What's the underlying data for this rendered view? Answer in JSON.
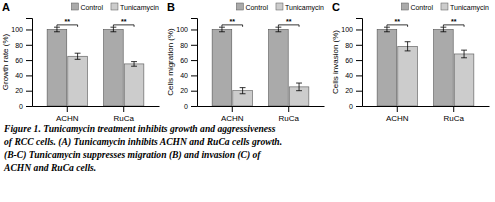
{
  "chart_data": [
    {
      "type": "bar",
      "title": "A",
      "y_label": "Growth rate (%)",
      "categories": [
        "ACHN",
        "RuCa"
      ],
      "series": [
        {
          "name": "Control",
          "color": "#aaaaaa",
          "values": [
            100,
            100
          ],
          "errors": [
            3,
            3
          ]
        },
        {
          "name": "Tunicamycin",
          "color": "#cccccc",
          "values": [
            65,
            55
          ],
          "errors": [
            4,
            3
          ]
        }
      ],
      "annotations": [
        {
          "text": "**",
          "category": "ACHN",
          "y": 106
        },
        {
          "text": "**",
          "category": "RuCa",
          "y": 106
        }
      ],
      "ylim": [
        0,
        115
      ],
      "yticks": [
        0,
        20,
        40,
        60,
        80,
        100
      ],
      "legend": "top"
    },
    {
      "type": "bar",
      "title": "B",
      "y_label": "Cells migration (%)",
      "categories": [
        "ACHN",
        "RuCa"
      ],
      "series": [
        {
          "name": "Control",
          "color": "#aaaaaa",
          "values": [
            100,
            100
          ],
          "errors": [
            3,
            3
          ]
        },
        {
          "name": "Tunicamycin",
          "color": "#cccccc",
          "values": [
            20,
            25
          ],
          "errors": [
            4,
            5
          ]
        }
      ],
      "annotations": [
        {
          "text": "**",
          "category": "ACHN",
          "y": 106
        },
        {
          "text": "**",
          "category": "RuCa",
          "y": 106
        }
      ],
      "ylim": [
        0,
        115
      ],
      "yticks": [
        0,
        20,
        40,
        60,
        80,
        100
      ],
      "legend": "top"
    },
    {
      "type": "bar",
      "title": "C",
      "y_label": "Cells invasion (%)",
      "categories": [
        "ACHN",
        "RuCa"
      ],
      "series": [
        {
          "name": "Control",
          "color": "#aaaaaa",
          "values": [
            100,
            100
          ],
          "errors": [
            3,
            3
          ]
        },
        {
          "name": "Tunicamycin",
          "color": "#cccccc",
          "values": [
            78,
            68
          ],
          "errors": [
            6,
            5
          ]
        }
      ],
      "annotations": [
        {
          "text": "**",
          "category": "ACHN",
          "y": 106
        },
        {
          "text": "**",
          "category": "RuCa",
          "y": 106
        }
      ],
      "ylim": [
        0,
        115
      ],
      "yticks": [
        0,
        20,
        40,
        60,
        80,
        100
      ],
      "legend": "top"
    }
  ],
  "caption": [
    "Figure 1.  Tunicamycin treatment inhibits growth and aggressiveness",
    "of RCC cells. (A) Tunicamycin inhibits ACHN and RuCa cells growth.",
    "(B-C)  Tunicamycin suppresses migration (B) and invasion (C) of",
    "ACHN and RuCa cells."
  ]
}
